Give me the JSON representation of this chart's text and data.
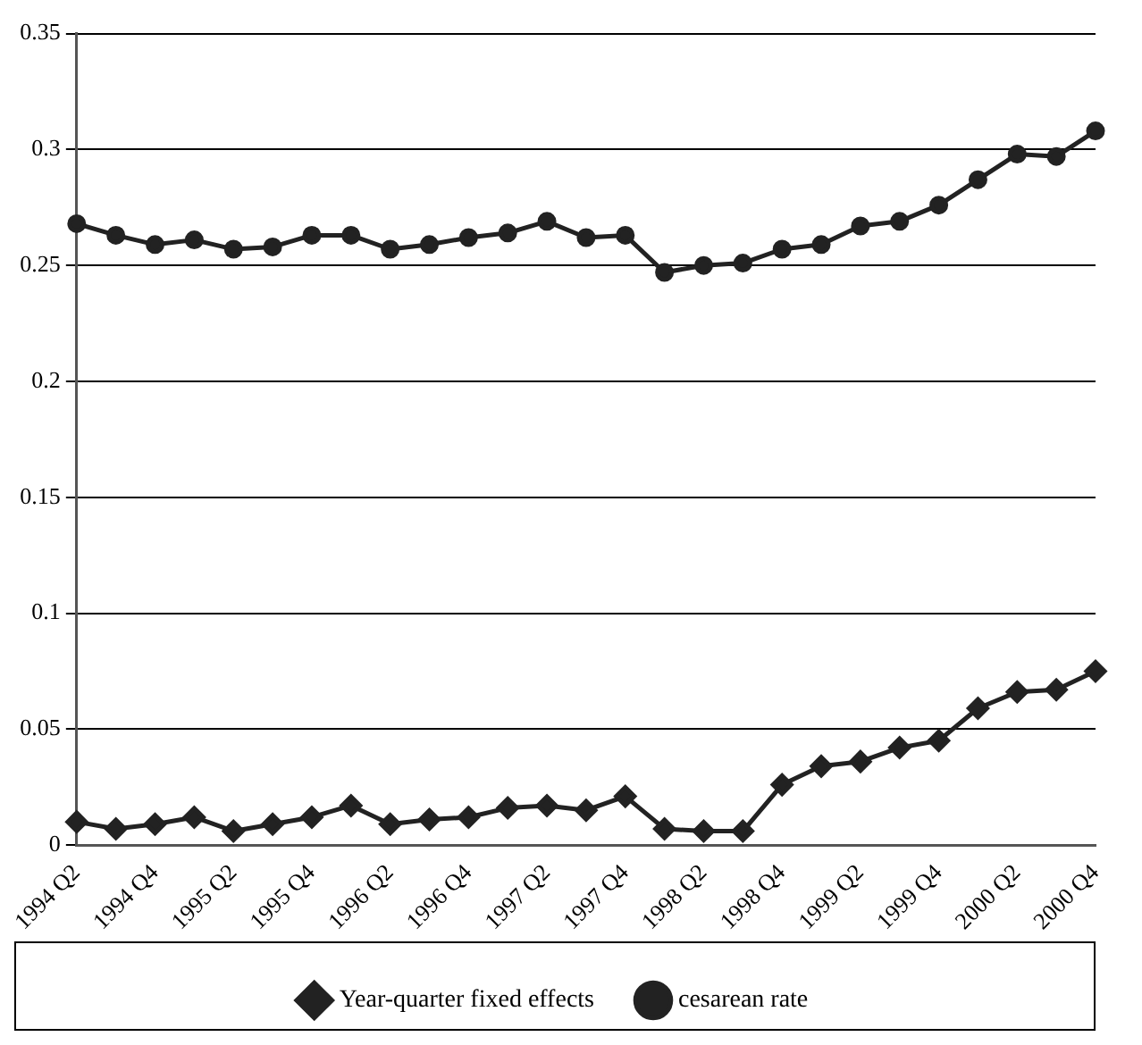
{
  "chart_data": {
    "type": "line",
    "categories": [
      "1994 Q2",
      null,
      "1994 Q4",
      null,
      "1995 Q2",
      null,
      "1995 Q4",
      null,
      "1996 Q2",
      null,
      "1996 Q4",
      null,
      "1997 Q2",
      null,
      "1997 Q4",
      null,
      "1998 Q2",
      null,
      "1998 Q4",
      null,
      "1999 Q2",
      null,
      "1999 Q4",
      null,
      "2000 Q2",
      null,
      "2000 Q4"
    ],
    "series": [
      {
        "name": "Year-quarter fixed effects",
        "color": "#222222",
        "marker": "diamond",
        "values": [
          0.01,
          0.007,
          0.009,
          0.012,
          0.006,
          0.009,
          0.012,
          0.017,
          0.009,
          0.011,
          0.012,
          0.016,
          0.017,
          0.015,
          0.021,
          0.007,
          0.006,
          0.006,
          0.026,
          0.034,
          0.036,
          0.042,
          0.045,
          0.059,
          0.066,
          0.067,
          0.075
        ]
      },
      {
        "name": "cesarean rate",
        "color": "#222222",
        "marker": "circle",
        "values": [
          0.268,
          0.263,
          0.259,
          0.261,
          0.257,
          0.258,
          0.263,
          0.263,
          0.257,
          0.259,
          0.262,
          0.264,
          0.269,
          0.262,
          0.263,
          0.247,
          0.25,
          0.251,
          0.257,
          0.259,
          0.267,
          0.269,
          0.276,
          0.287,
          0.298,
          0.297,
          0.308
        ]
      }
    ],
    "ylim": [
      0,
      0.35
    ],
    "yticks": [
      0,
      0.05,
      0.1,
      0.15,
      0.2,
      0.25,
      0.3,
      0.35
    ],
    "grid": "y",
    "legend": "bottom",
    "line_style": "solid"
  }
}
